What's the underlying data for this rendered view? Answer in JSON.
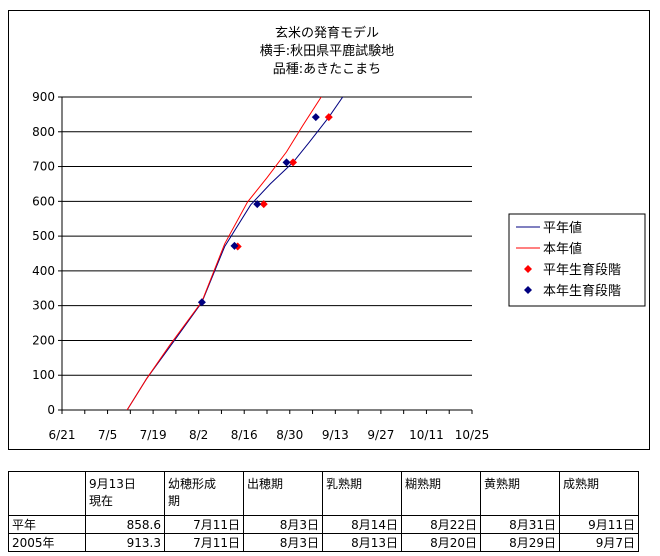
{
  "chart_data": {
    "type": "line",
    "title": [
      "玄米の発育モデル",
      "横手:秋田県平鹿試験地",
      "品種:あきたこまち"
    ],
    "xlabel": "",
    "ylabel": "",
    "ylim": [
      0,
      900
    ],
    "yticks": [
      0,
      100,
      200,
      300,
      400,
      500,
      600,
      700,
      800,
      900
    ],
    "xlim": [
      "6/21",
      "10/25"
    ],
    "xticks": [
      "6/21",
      "7/5",
      "7/19",
      "8/2",
      "8/16",
      "8/30",
      "9/13",
      "9/27",
      "10/11",
      "10/25"
    ],
    "grid": "horizontal",
    "legend_position": "right",
    "series": [
      {
        "name": "平年値",
        "kind": "line",
        "color": "#000080",
        "points": [
          [
            "7/11",
            0
          ],
          [
            "7/17",
            90
          ],
          [
            "7/24",
            180
          ],
          [
            "8/3",
            310
          ],
          [
            "8/10",
            470
          ],
          [
            "8/18",
            590
          ],
          [
            "8/24",
            650
          ],
          [
            "8/31",
            712
          ],
          [
            "9/5",
            770
          ],
          [
            "9/11",
            842
          ],
          [
            "9/16",
            910
          ]
        ]
      },
      {
        "name": "本年値",
        "kind": "line",
        "color": "#ff0000",
        "points": [
          [
            "7/11",
            0
          ],
          [
            "7/17",
            90
          ],
          [
            "7/24",
            185
          ],
          [
            "8/3",
            312
          ],
          [
            "8/10",
            478
          ],
          [
            "8/17",
            598
          ],
          [
            "8/23",
            668
          ],
          [
            "8/29",
            742
          ],
          [
            "9/3",
            818
          ],
          [
            "9/9",
            905
          ],
          [
            "9/11",
            925
          ]
        ]
      },
      {
        "name": "平年生育段階",
        "kind": "marker",
        "color": "#ff0000",
        "points": [
          [
            "8/14",
            470
          ],
          [
            "8/22",
            592
          ],
          [
            "8/31",
            712
          ],
          [
            "9/11",
            842
          ]
        ]
      },
      {
        "name": "本年生育段階",
        "kind": "marker",
        "color": "#000080",
        "points": [
          [
            "8/3",
            310
          ],
          [
            "8/13",
            472
          ],
          [
            "8/20",
            592
          ],
          [
            "8/29",
            712
          ],
          [
            "9/7",
            842
          ]
        ]
      }
    ]
  },
  "table": {
    "headers": [
      "",
      "9月13日\n現在",
      "幼穂形成\n期",
      "出穂期",
      "乳熟期",
      "糊熟期",
      "黄熟期",
      "成熟期"
    ],
    "rows": [
      [
        "平年",
        "858.6",
        "7月11日",
        "8月3日",
        "8月14日",
        "8月22日",
        "8月31日",
        "9月11日"
      ],
      [
        "2005年",
        "913.3",
        "7月11日",
        "8月3日",
        "8月13日",
        "8月20日",
        "8月29日",
        "9月7日"
      ]
    ]
  }
}
